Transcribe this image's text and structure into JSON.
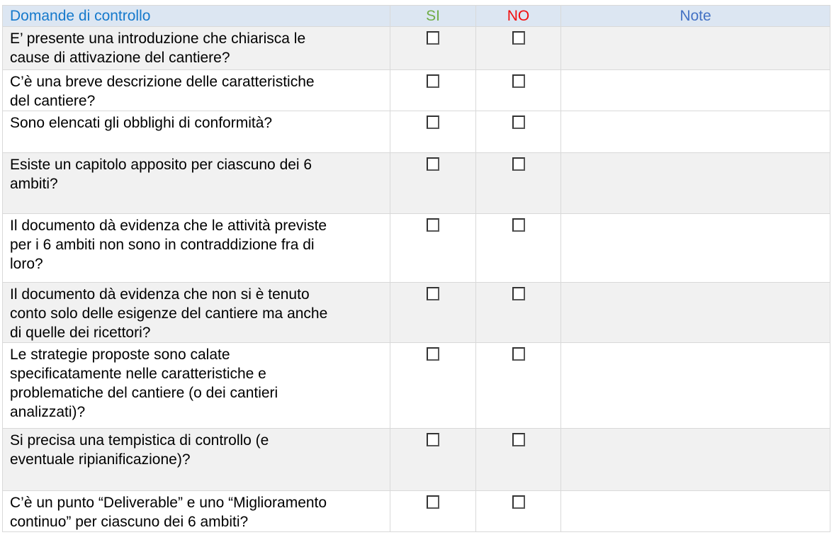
{
  "table": {
    "headers": {
      "question": "Domande di controllo",
      "yes": "SI",
      "no": "NO",
      "notes": "Note"
    },
    "rows": [
      {
        "question": "E’ presente una introduzione che chiarisca le\ncause di attivazione del cantiere?",
        "si_checked": false,
        "no_checked": false,
        "note": ""
      },
      {
        "question": "C’è una breve descrizione delle caratteristiche\ndel cantiere?",
        "si_checked": false,
        "no_checked": false,
        "note": ""
      },
      {
        "question": "Sono elencati gli obblighi di conformità?",
        "si_checked": false,
        "no_checked": false,
        "note": ""
      },
      {
        "question": "Esiste un capitolo apposito per ciascuno dei 6\nambiti?",
        "si_checked": false,
        "no_checked": false,
        "note": ""
      },
      {
        "question": "Il documento dà evidenza che le attività previste\nper i 6 ambiti non sono in contraddizione fra di\nloro?",
        "si_checked": false,
        "no_checked": false,
        "note": ""
      },
      {
        "question": "Il documento dà evidenza che non si è tenuto\nconto solo delle esigenze del cantiere ma anche\ndi quelle dei ricettori?",
        "si_checked": false,
        "no_checked": false,
        "note": ""
      },
      {
        "question": "Le strategie proposte sono calate\nspecificatamente nelle caratteristiche e\nproblematiche del cantiere (o dei cantieri\nanalizzati)?",
        "si_checked": false,
        "no_checked": false,
        "note": ""
      },
      {
        "question": "Si precisa una tempistica di controllo (e\neventuale ripianificazione)?",
        "si_checked": false,
        "no_checked": false,
        "note": ""
      },
      {
        "question": "C’è un punto “Deliverable” e uno “Miglioramento\ncontinuo” per ciascuno dei 6 ambiti?",
        "si_checked": false,
        "no_checked": false,
        "note": ""
      }
    ]
  },
  "colors": {
    "header_bg": "#dce6f2",
    "shaded_row_bg": "#f1f1f1",
    "white_row_bg": "#ffffff",
    "border": "#d9d9d9",
    "question_header_text": "#1579cc",
    "si_text": "#70ad47",
    "no_text": "#f20d0d",
    "note_text": "#4472c4",
    "body_text": "#000000",
    "checkbox_border": "#3f3f3f"
  }
}
